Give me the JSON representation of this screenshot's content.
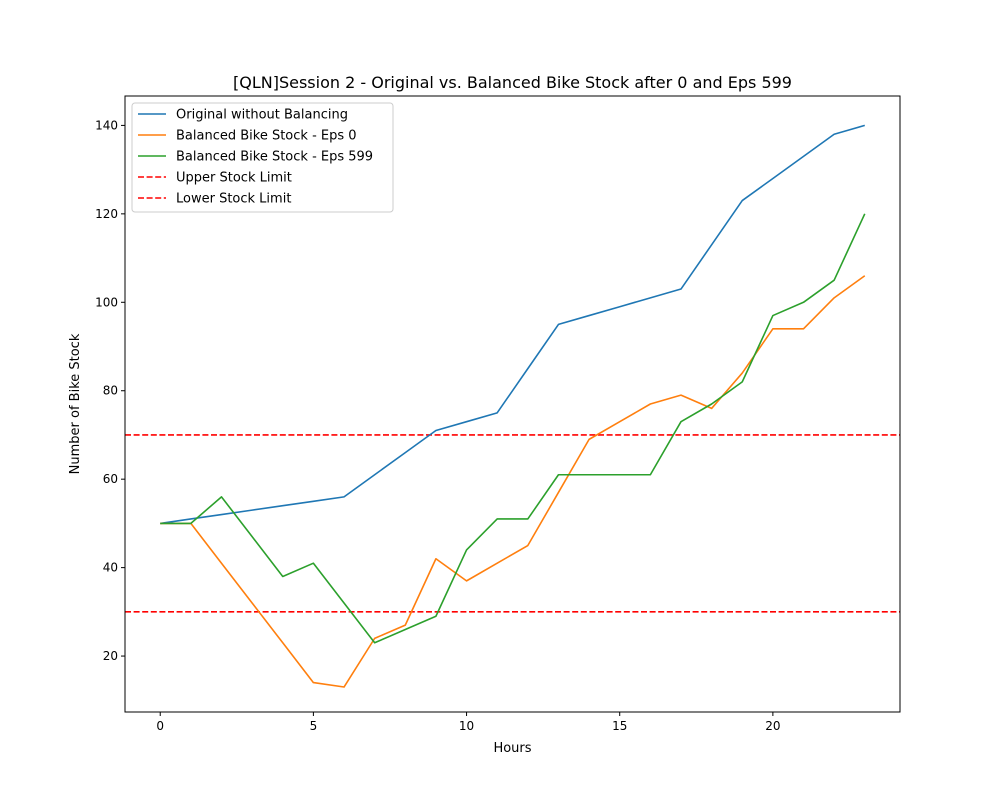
{
  "chart_data": {
    "type": "line",
    "title": "[QLN]Session 2 - Original vs. Balanced Bike Stock after 0 and Eps 599",
    "xlabel": "Hours",
    "ylabel": "Number of Bike Stock",
    "xlim": [
      -1.15,
      24.15
    ],
    "ylim": [
      7.35,
      146.65
    ],
    "xticks": [
      0,
      5,
      10,
      15,
      20
    ],
    "yticks": [
      20,
      40,
      60,
      80,
      100,
      120,
      140
    ],
    "grid": false,
    "legend_position": "upper-left",
    "x": [
      0,
      1,
      2,
      3,
      4,
      5,
      6,
      7,
      8,
      9,
      10,
      11,
      12,
      13,
      14,
      15,
      16,
      17,
      18,
      19,
      20,
      21,
      22,
      23
    ],
    "series": [
      {
        "name": "Original without Balancing",
        "color": "#1f77b4",
        "style": "solid",
        "values": [
          50,
          51,
          52,
          53,
          54,
          55,
          56,
          61,
          66,
          71,
          73,
          75,
          85,
          95,
          97,
          99,
          101,
          103,
          113,
          123,
          128,
          133,
          138,
          140
        ]
      },
      {
        "name": "Balanced Bike Stock - Eps 0",
        "color": "#ff7f0e",
        "style": "solid",
        "values": [
          50,
          50,
          41,
          32,
          23,
          14,
          13,
          24,
          27,
          42,
          37,
          41,
          45,
          57,
          69,
          73,
          77,
          79,
          76,
          84,
          94,
          94,
          101,
          106
        ]
      },
      {
        "name": "Balanced Bike Stock - Eps 599",
        "color": "#2ca02c",
        "style": "solid",
        "values": [
          50,
          50,
          56,
          47,
          38,
          41,
          32,
          23,
          26,
          29,
          44,
          51,
          51,
          61,
          61,
          61,
          61,
          73,
          77,
          82,
          97,
          100,
          105,
          120
        ]
      }
    ],
    "reference_lines": [
      {
        "name": "Upper Stock Limit",
        "y": 70,
        "color": "#ff0000",
        "style": "dashed"
      },
      {
        "name": "Lower Stock Limit",
        "y": 30,
        "color": "#ff0000",
        "style": "dashed"
      }
    ]
  }
}
